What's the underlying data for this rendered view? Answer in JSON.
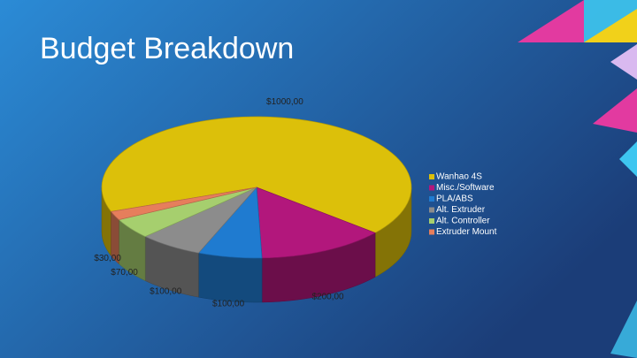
{
  "chart_data": {
    "type": "pie",
    "title": "Budget Breakdown",
    "categories": [
      "Wanhao 4S",
      "Misc./Software",
      "PLA/ABS",
      "Alt. Extruder",
      "Alt. Controller",
      "Extruder Mount"
    ],
    "values": [
      1000,
      200,
      100,
      100,
      70,
      30
    ],
    "value_labels": [
      "$1000,00",
      "$200,00",
      "$100,00",
      "$100,00",
      "$70,00",
      "$30,00"
    ],
    "colors": [
      "#dcc00a",
      "#b2177c",
      "#1f7bd0",
      "#8c8c8c",
      "#a6cf6e",
      "#e67e5c"
    ],
    "legend": "right"
  }
}
